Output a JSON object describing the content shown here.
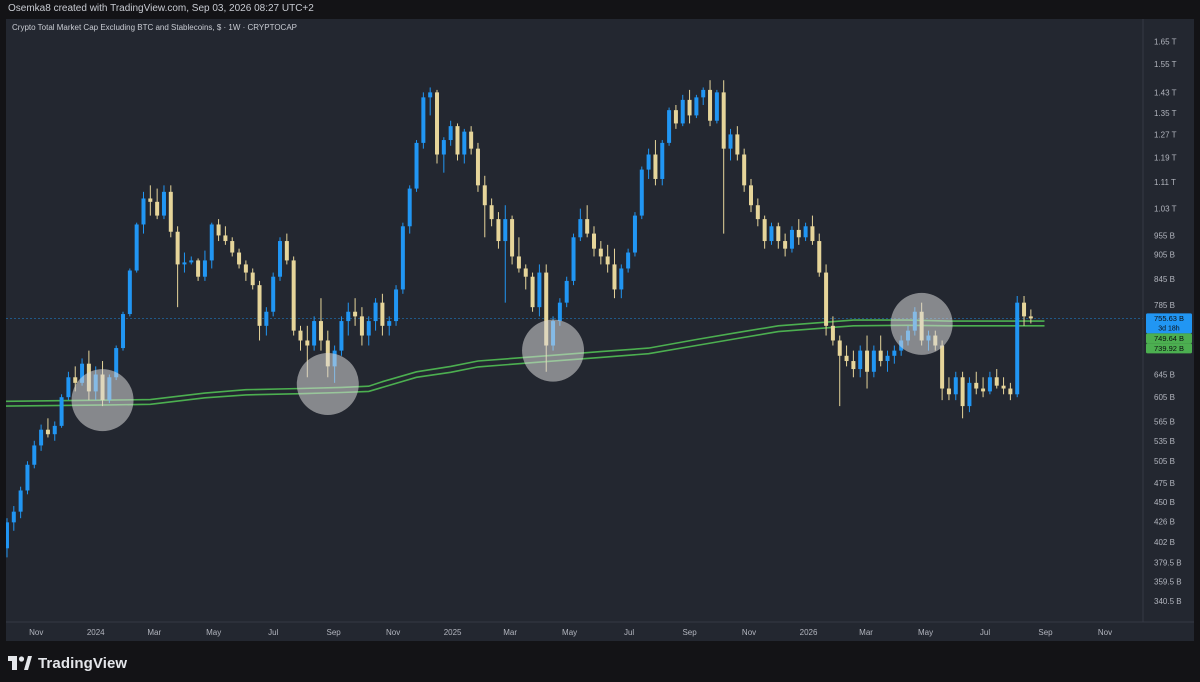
{
  "header": {
    "credit": "Osemka8 created with TradingView.com, Sep 03, 2026 08:27 UTC+2"
  },
  "logo": {
    "text": "TradingView",
    "icon": "tradingview-logo-icon"
  },
  "colors": {
    "up": "#2196f3",
    "down": "#e6d59a",
    "ma": "#4caf50",
    "background": "#232730",
    "price_marker_current": "#2196f3",
    "price_marker_ma_upper": "#4caf50",
    "price_marker_ma_lower": "#4caf50"
  },
  "chart_data": {
    "type": "candlestick",
    "title": "Crypto Total Market Cap Excluding BTC and Stablecoins, $ · 1W · CRYPTOCAP",
    "timeframe": "1W",
    "y_scale": "log",
    "y_ticks": [
      "1.65 T",
      "1.55 T",
      "1.43 T",
      "1.35 T",
      "1.27 T",
      "1.19 T",
      "1.11 T",
      "1.03 T",
      "955 B",
      "905 B",
      "845 B",
      "785 B",
      "645 B",
      "605 B",
      "565 B",
      "535 B",
      "505 B",
      "475 B",
      "450 B",
      "426 B",
      "402 B",
      "379.5 B",
      "359.5 B",
      "340.5 B"
    ],
    "y_tick_values": [
      1650,
      1550,
      1430,
      1350,
      1270,
      1190,
      1110,
      1030,
      955,
      905,
      845,
      785,
      645,
      605,
      565,
      535,
      505,
      475,
      450,
      426,
      402,
      379.5,
      359.5,
      340.5
    ],
    "ylim": [
      330,
      1710
    ],
    "x_ticks": [
      "Nov",
      "2024",
      "Mar",
      "May",
      "Jul",
      "Sep",
      "Nov",
      "2025",
      "Mar",
      "May",
      "Jul",
      "Sep",
      "Nov",
      "2026",
      "Mar",
      "May",
      "Jul",
      "Sep",
      "Nov"
    ],
    "x_tick_dates": [
      "2023-11-01",
      "2024-01-01",
      "2024-03-01",
      "2024-05-01",
      "2024-07-01",
      "2024-09-01",
      "2024-11-01",
      "2025-01-01",
      "2025-03-01",
      "2025-05-01",
      "2025-07-01",
      "2025-09-01",
      "2025-11-01",
      "2026-01-01",
      "2026-03-01",
      "2026-05-01",
      "2026-07-01",
      "2026-09-01",
      "2026-11-01"
    ],
    "price_markers": [
      {
        "label": "755.63 B",
        "sub": "3d 18h",
        "value": 755.63,
        "kind": "current"
      },
      {
        "label": "749.64 B",
        "value": 749.64,
        "kind": "ma_upper"
      },
      {
        "label": "739.92 B",
        "value": 739.92,
        "kind": "ma_lower"
      }
    ],
    "current_price_line": 755.63,
    "ma_band_upper": [
      [
        "2023-10-01",
        598
      ],
      [
        "2024-01-15",
        600
      ],
      [
        "2024-02-26",
        601
      ],
      [
        "2024-04-22",
        612
      ],
      [
        "2024-06-03",
        618
      ],
      [
        "2024-07-29",
        620
      ],
      [
        "2024-09-09",
        622
      ],
      [
        "2024-10-07",
        624
      ],
      [
        "2024-10-21",
        632
      ],
      [
        "2024-11-25",
        650
      ],
      [
        "2024-12-30",
        660
      ],
      [
        "2025-01-27",
        670
      ],
      [
        "2025-04-07",
        680
      ],
      [
        "2025-06-02",
        688
      ],
      [
        "2025-07-21",
        695
      ],
      [
        "2025-09-08",
        712
      ],
      [
        "2025-10-20",
        726
      ],
      [
        "2025-12-01",
        740
      ],
      [
        "2026-02-16",
        752
      ],
      [
        "2026-04-13",
        752
      ],
      [
        "2026-05-25",
        750
      ],
      [
        "2026-07-27",
        750
      ],
      [
        "2026-08-31",
        750
      ]
    ],
    "ma_band_lower": [
      [
        "2023-10-01",
        590
      ],
      [
        "2024-01-15",
        592
      ],
      [
        "2024-02-26",
        593
      ],
      [
        "2024-04-22",
        604
      ],
      [
        "2024-06-03",
        609
      ],
      [
        "2024-07-29",
        611
      ],
      [
        "2024-09-09",
        613
      ],
      [
        "2024-10-07",
        615
      ],
      [
        "2024-10-21",
        622
      ],
      [
        "2024-11-25",
        640
      ],
      [
        "2024-12-30",
        649
      ],
      [
        "2025-01-27",
        659
      ],
      [
        "2025-04-07",
        669
      ],
      [
        "2025-06-02",
        677
      ],
      [
        "2025-07-21",
        684
      ],
      [
        "2025-09-08",
        700
      ],
      [
        "2025-10-20",
        714
      ],
      [
        "2025-12-01",
        728
      ],
      [
        "2026-02-16",
        740
      ],
      [
        "2026-04-13",
        741
      ],
      [
        "2026-05-25",
        740
      ],
      [
        "2026-07-27",
        740
      ],
      [
        "2026-08-31",
        740
      ]
    ],
    "candles": [
      [
        "2023-10-02",
        395,
        430,
        385,
        425
      ],
      [
        "2023-10-09",
        425,
        445,
        415,
        438
      ],
      [
        "2023-10-16",
        438,
        470,
        430,
        465
      ],
      [
        "2023-10-23",
        465,
        505,
        460,
        500
      ],
      [
        "2023-10-30",
        500,
        535,
        495,
        528
      ],
      [
        "2023-11-06",
        528,
        560,
        520,
        552
      ],
      [
        "2023-11-13",
        552,
        570,
        540,
        545
      ],
      [
        "2023-11-20",
        545,
        565,
        535,
        558
      ],
      [
        "2023-11-27",
        558,
        610,
        555,
        605
      ],
      [
        "2023-12-04",
        605,
        650,
        600,
        640
      ],
      [
        "2023-12-11",
        640,
        660,
        615,
        630
      ],
      [
        "2023-12-18",
        630,
        675,
        625,
        665
      ],
      [
        "2023-12-25",
        665,
        690,
        600,
        615
      ],
      [
        "2024-01-01",
        615,
        660,
        600,
        645
      ],
      [
        "2024-01-08",
        645,
        670,
        590,
        600
      ],
      [
        "2024-01-15",
        600,
        645,
        595,
        640
      ],
      [
        "2024-01-22",
        640,
        700,
        635,
        695
      ],
      [
        "2024-01-29",
        695,
        770,
        690,
        765
      ],
      [
        "2024-02-05",
        765,
        870,
        760,
        865
      ],
      [
        "2024-02-12",
        865,
        990,
        860,
        985
      ],
      [
        "2024-02-19",
        985,
        1080,
        960,
        1060
      ],
      [
        "2024-02-26",
        1060,
        1100,
        1010,
        1050
      ],
      [
        "2024-03-04",
        1050,
        1090,
        1000,
        1010
      ],
      [
        "2024-03-11",
        1010,
        1100,
        1000,
        1080
      ],
      [
        "2024-03-18",
        1080,
        1100,
        950,
        965
      ],
      [
        "2024-03-25",
        965,
        980,
        780,
        880
      ],
      [
        "2024-04-01",
        880,
        910,
        860,
        885
      ],
      [
        "2024-04-08",
        885,
        900,
        880,
        890
      ],
      [
        "2024-04-15",
        890,
        895,
        840,
        850
      ],
      [
        "2024-04-22",
        850,
        915,
        840,
        890
      ],
      [
        "2024-04-29",
        890,
        990,
        870,
        985
      ],
      [
        "2024-05-06",
        985,
        1000,
        940,
        955
      ],
      [
        "2024-05-13",
        955,
        980,
        930,
        940
      ],
      [
        "2024-05-20",
        940,
        950,
        900,
        910
      ],
      [
        "2024-05-27",
        910,
        920,
        870,
        880
      ],
      [
        "2024-06-03",
        880,
        890,
        840,
        860
      ],
      [
        "2024-06-10",
        860,
        870,
        820,
        830
      ],
      [
        "2024-06-17",
        830,
        840,
        710,
        740
      ],
      [
        "2024-06-24",
        740,
        780,
        720,
        770
      ],
      [
        "2024-07-01",
        770,
        860,
        760,
        850
      ],
      [
        "2024-07-08",
        850,
        950,
        840,
        940
      ],
      [
        "2024-07-15",
        940,
        960,
        880,
        890
      ],
      [
        "2024-07-22",
        890,
        900,
        720,
        730
      ],
      [
        "2024-07-29",
        730,
        740,
        690,
        710
      ],
      [
        "2024-08-05",
        710,
        740,
        640,
        700
      ],
      [
        "2024-08-12",
        700,
        760,
        690,
        750
      ],
      [
        "2024-08-19",
        750,
        800,
        690,
        710
      ],
      [
        "2024-08-26",
        710,
        730,
        640,
        660
      ],
      [
        "2024-09-02",
        660,
        700,
        630,
        690
      ],
      [
        "2024-09-09",
        690,
        760,
        680,
        750
      ],
      [
        "2024-09-16",
        750,
        790,
        720,
        770
      ],
      [
        "2024-09-23",
        770,
        800,
        740,
        760
      ],
      [
        "2024-09-30",
        760,
        780,
        700,
        720
      ],
      [
        "2024-10-07",
        720,
        760,
        700,
        750
      ],
      [
        "2024-10-14",
        750,
        800,
        730,
        790
      ],
      [
        "2024-10-21",
        790,
        810,
        720,
        740
      ],
      [
        "2024-10-28",
        740,
        760,
        720,
        750
      ],
      [
        "2024-11-04",
        750,
        830,
        740,
        820
      ],
      [
        "2024-11-11",
        820,
        990,
        810,
        980
      ],
      [
        "2024-11-18",
        980,
        1100,
        960,
        1090
      ],
      [
        "2024-11-25",
        1090,
        1250,
        1080,
        1240
      ],
      [
        "2024-12-02",
        1240,
        1430,
        1220,
        1410
      ],
      [
        "2024-12-09",
        1410,
        1450,
        1340,
        1430
      ],
      [
        "2024-12-16",
        1430,
        1440,
        1170,
        1200
      ],
      [
        "2024-12-23",
        1200,
        1260,
        1140,
        1250
      ],
      [
        "2024-12-30",
        1250,
        1320,
        1230,
        1300
      ],
      [
        "2025-01-06",
        1300,
        1310,
        1180,
        1200
      ],
      [
        "2025-01-13",
        1200,
        1290,
        1170,
        1280
      ],
      [
        "2025-01-20",
        1280,
        1300,
        1200,
        1220
      ],
      [
        "2025-01-27",
        1220,
        1240,
        1080,
        1100
      ],
      [
        "2025-02-03",
        1100,
        1130,
        950,
        1040
      ],
      [
        "2025-02-10",
        1040,
        1060,
        980,
        1000
      ],
      [
        "2025-02-17",
        1000,
        1020,
        920,
        940
      ],
      [
        "2025-02-24",
        940,
        1040,
        790,
        1000
      ],
      [
        "2025-03-03",
        1000,
        1010,
        880,
        900
      ],
      [
        "2025-03-10",
        900,
        950,
        860,
        870
      ],
      [
        "2025-03-17",
        870,
        880,
        820,
        850
      ],
      [
        "2025-03-24",
        850,
        860,
        770,
        780
      ],
      [
        "2025-03-31",
        780,
        880,
        760,
        860
      ],
      [
        "2025-04-07",
        860,
        880,
        650,
        700
      ],
      [
        "2025-04-14",
        700,
        760,
        690,
        750
      ],
      [
        "2025-04-21",
        750,
        800,
        740,
        790
      ],
      [
        "2025-04-28",
        790,
        850,
        780,
        840
      ],
      [
        "2025-05-05",
        840,
        960,
        830,
        950
      ],
      [
        "2025-05-12",
        950,
        1030,
        940,
        1000
      ],
      [
        "2025-05-19",
        1000,
        1040,
        950,
        960
      ],
      [
        "2025-05-26",
        960,
        980,
        900,
        920
      ],
      [
        "2025-06-02",
        920,
        940,
        880,
        900
      ],
      [
        "2025-06-09",
        900,
        930,
        860,
        880
      ],
      [
        "2025-06-16",
        880,
        920,
        800,
        820
      ],
      [
        "2025-06-23",
        820,
        880,
        800,
        870
      ],
      [
        "2025-06-30",
        870,
        920,
        860,
        910
      ],
      [
        "2025-07-07",
        910,
        1020,
        900,
        1010
      ],
      [
        "2025-07-14",
        1010,
        1160,
        1000,
        1150
      ],
      [
        "2025-07-21",
        1150,
        1220,
        1120,
        1200
      ],
      [
        "2025-07-28",
        1200,
        1250,
        1100,
        1120
      ],
      [
        "2025-08-04",
        1120,
        1250,
        1100,
        1240
      ],
      [
        "2025-08-11",
        1240,
        1370,
        1230,
        1360
      ],
      [
        "2025-08-18",
        1360,
        1380,
        1290,
        1310
      ],
      [
        "2025-08-25",
        1310,
        1420,
        1300,
        1400
      ],
      [
        "2025-09-01",
        1400,
        1440,
        1310,
        1340
      ],
      [
        "2025-09-08",
        1340,
        1420,
        1330,
        1410
      ],
      [
        "2025-09-15",
        1410,
        1450,
        1380,
        1440
      ],
      [
        "2025-09-22",
        1440,
        1480,
        1300,
        1320
      ],
      [
        "2025-09-29",
        1320,
        1440,
        1310,
        1430
      ],
      [
        "2025-10-06",
        1430,
        1480,
        960,
        1220
      ],
      [
        "2025-10-13",
        1220,
        1290,
        1180,
        1270
      ],
      [
        "2025-10-20",
        1270,
        1300,
        1180,
        1200
      ],
      [
        "2025-10-27",
        1200,
        1220,
        1080,
        1100
      ],
      [
        "2025-11-03",
        1100,
        1120,
        1020,
        1040
      ],
      [
        "2025-11-10",
        1040,
        1060,
        980,
        1000
      ],
      [
        "2025-11-17",
        1000,
        1010,
        920,
        940
      ],
      [
        "2025-11-24",
        940,
        990,
        930,
        980
      ],
      [
        "2025-12-01",
        980,
        990,
        920,
        940
      ],
      [
        "2025-12-08",
        940,
        960,
        900,
        920
      ],
      [
        "2025-12-15",
        920,
        980,
        910,
        970
      ],
      [
        "2025-12-22",
        970,
        1000,
        930,
        950
      ],
      [
        "2025-12-29",
        950,
        990,
        940,
        980
      ],
      [
        "2026-01-05",
        980,
        1010,
        930,
        940
      ],
      [
        "2026-01-12",
        940,
        960,
        850,
        860
      ],
      [
        "2026-01-19",
        860,
        880,
        720,
        740
      ],
      [
        "2026-01-26",
        740,
        760,
        700,
        710
      ],
      [
        "2026-02-02",
        710,
        720,
        590,
        680
      ],
      [
        "2026-02-09",
        680,
        700,
        660,
        670
      ],
      [
        "2026-02-16",
        670,
        690,
        640,
        655
      ],
      [
        "2026-02-23",
        655,
        700,
        640,
        690
      ],
      [
        "2026-03-02",
        690,
        720,
        620,
        650
      ],
      [
        "2026-03-09",
        650,
        700,
        640,
        690
      ],
      [
        "2026-03-16",
        690,
        720,
        660,
        670
      ],
      [
        "2026-03-23",
        670,
        690,
        650,
        680
      ],
      [
        "2026-03-30",
        680,
        700,
        665,
        690
      ],
      [
        "2026-04-06",
        690,
        720,
        680,
        710
      ],
      [
        "2026-04-13",
        710,
        740,
        700,
        730
      ],
      [
        "2026-04-20",
        730,
        780,
        720,
        770
      ],
      [
        "2026-04-27",
        770,
        790,
        700,
        710
      ],
      [
        "2026-05-04",
        710,
        730,
        690,
        720
      ],
      [
        "2026-05-11",
        720,
        730,
        690,
        700
      ],
      [
        "2026-05-18",
        700,
        710,
        600,
        620
      ],
      [
        "2026-05-25",
        620,
        640,
        600,
        610
      ],
      [
        "2026-06-01",
        610,
        650,
        600,
        640
      ],
      [
        "2026-06-08",
        640,
        650,
        570,
        590
      ],
      [
        "2026-06-15",
        590,
        640,
        580,
        630
      ],
      [
        "2026-06-22",
        630,
        650,
        610,
        620
      ],
      [
        "2026-06-29",
        620,
        640,
        605,
        615
      ],
      [
        "2026-07-06",
        615,
        650,
        610,
        640
      ],
      [
        "2026-07-13",
        640,
        655,
        620,
        625
      ],
      [
        "2026-07-20",
        625,
        640,
        610,
        620
      ],
      [
        "2026-07-27",
        620,
        630,
        600,
        610
      ],
      [
        "2026-08-03",
        610,
        805,
        605,
        790
      ],
      [
        "2026-08-10",
        790,
        805,
        740,
        760
      ],
      [
        "2026-08-17",
        760,
        775,
        745,
        755.63
      ]
    ]
  }
}
